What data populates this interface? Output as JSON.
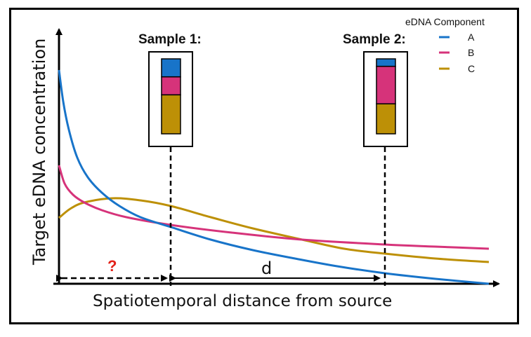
{
  "axes": {
    "y_label": "Target eDNA concentration",
    "x_label": "Spatiotemporal distance from source"
  },
  "legend": {
    "title": "eDNA Component",
    "items": [
      {
        "label": "A",
        "color": "#1874c9"
      },
      {
        "label": "B",
        "color": "#d6337a"
      },
      {
        "label": "C",
        "color": "#bd9006"
      }
    ]
  },
  "samples": [
    {
      "title": "Sample 1:",
      "proportions": {
        "A": 0.24,
        "B": 0.24,
        "C": 0.52
      }
    },
    {
      "title": "Sample 2:",
      "proportions": {
        "A": 0.1,
        "B": 0.5,
        "C": 0.4
      }
    }
  ],
  "annotations": {
    "unknown_distance": "?",
    "distance_label": "d"
  },
  "colors": {
    "A": "#1874c9",
    "B": "#d6337a",
    "C": "#bd9006",
    "question_mark": "#e32219"
  }
}
